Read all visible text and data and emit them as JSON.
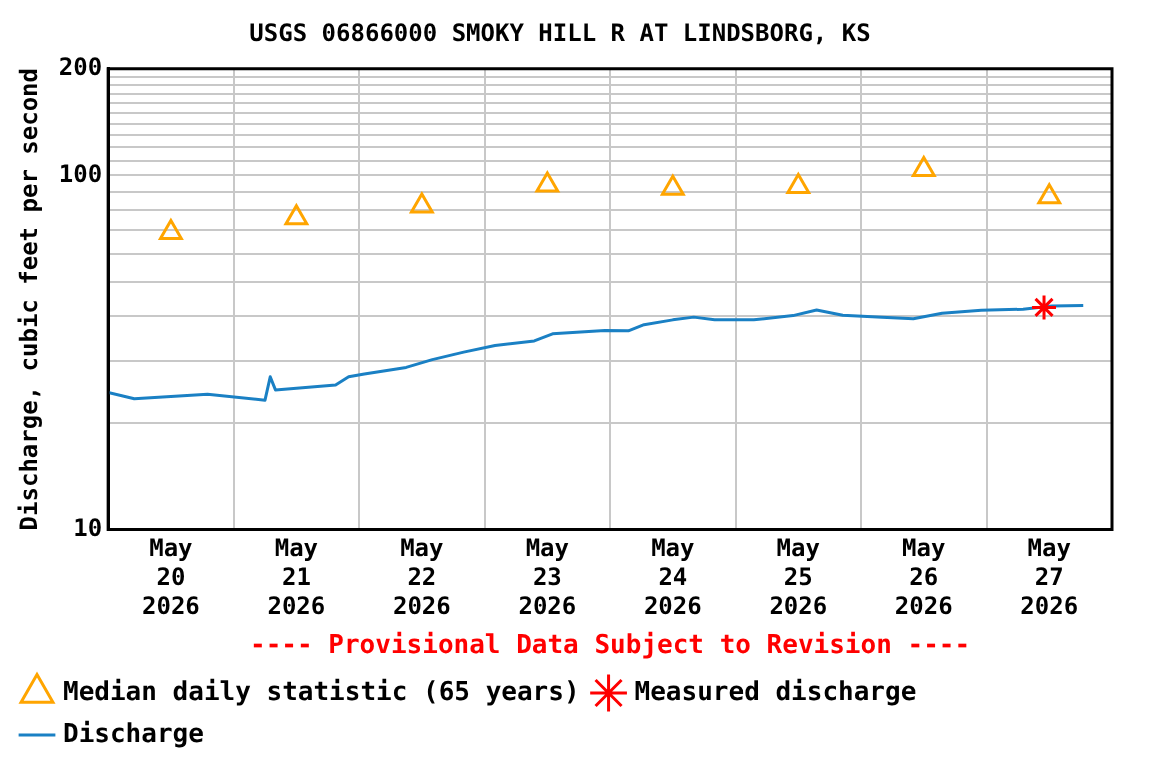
{
  "chart_data": {
    "type": "line",
    "title": "USGS 06866000 SMOKY HILL R AT LINDSBORG, KS",
    "ylabel": "Discharge, cubic feet per second",
    "annotations": [
      "---- Provisional Data Subject to Revision ----"
    ],
    "log": "y",
    "grid": true,
    "legend": "bottom",
    "xlim": [
      "2026-05-20T00:00",
      "2026-05-28T00:00"
    ],
    "xticks": [
      {
        "value": "2026-05-20T00:00",
        "label": null
      },
      {
        "value": "2026-05-20T12:00",
        "label": "May 20 2026"
      },
      {
        "value": "2026-05-21T00:00",
        "label": null
      },
      {
        "value": "2026-05-21T12:00",
        "label": "May 21 2026"
      },
      {
        "value": "2026-05-22T00:00",
        "label": null
      },
      {
        "value": "2026-05-22T12:00",
        "label": "May 22 2026"
      },
      {
        "value": "2026-05-23T00:00",
        "label": null
      },
      {
        "value": "2026-05-23T12:00",
        "label": "May 23 2026"
      },
      {
        "value": "2026-05-24T00:00",
        "label": null
      },
      {
        "value": "2026-05-24T12:00",
        "label": "May 24 2026"
      },
      {
        "value": "2026-05-25T00:00",
        "label": null
      },
      {
        "value": "2026-05-25T12:00",
        "label": "May 25 2026"
      },
      {
        "value": "2026-05-26T00:00",
        "label": null
      },
      {
        "value": "2026-05-26T12:00",
        "label": "May 26 2026"
      },
      {
        "value": "2026-05-27T00:00",
        "label": null
      },
      {
        "value": "2026-05-27T12:00",
        "label": "May 27 2026"
      },
      {
        "value": "2026-05-28T00:00",
        "label": null
      }
    ],
    "ylim": [
      10,
      200
    ],
    "yticks": [
      10,
      {
        "value": 20,
        "label": null
      },
      {
        "value": 30,
        "label": null
      },
      {
        "value": 40,
        "label": null
      },
      {
        "value": 50,
        "label": null
      },
      {
        "value": 60,
        "label": null
      },
      {
        "value": 70,
        "label": null
      },
      {
        "value": 80,
        "label": null
      },
      {
        "value": 90,
        "label": null
      },
      100,
      {
        "value": 110,
        "label": null
      },
      {
        "value": 120,
        "label": null
      },
      {
        "value": 130,
        "label": null
      },
      {
        "value": 140,
        "label": null
      },
      {
        "value": 150,
        "label": null
      },
      {
        "value": 160,
        "label": null
      },
      {
        "value": 170,
        "label": null
      },
      {
        "value": 180,
        "label": null
      },
      {
        "value": 190,
        "label": null
      },
      200
    ],
    "series": [
      {
        "name": "Median daily statistic (65 years)",
        "type": "scatter",
        "marker": "triangle",
        "color": "#ffa500",
        "x": [
          "2026-05-20T12:00",
          "2026-05-21T12:00",
          "2026-05-22T12:00",
          "2026-05-23T12:00",
          "2026-05-24T12:00",
          "2026-05-25T12:00",
          "2026-05-26T12:00",
          "2026-05-27T12:00"
        ],
        "values": [
          69,
          76,
          82,
          94,
          92,
          93,
          104,
          87
        ]
      },
      {
        "name": "Measured discharge",
        "type": "scatter",
        "marker": "cross",
        "color": "#ff0000",
        "x": [
          "2026-05-27T11:00"
        ],
        "values": [
          42.4
        ]
      },
      {
        "name": "Discharge",
        "marker": "none",
        "color": "#1a80c4",
        "x": [
          "2026-05-20T00:00",
          "2026-05-20T05:00",
          "2026-05-20T19:00",
          "2026-05-21T06:00",
          "2026-05-21T07:00",
          "2026-05-21T08:00",
          "2026-05-21T19:30",
          "2026-05-21T22:00",
          "2026-05-22T01:00",
          "2026-05-22T09:00",
          "2026-05-22T14:00",
          "2026-05-22T20:00",
          "2026-05-23T02:00",
          "2026-05-23T09:30",
          "2026-05-23T13:00",
          "2026-05-23T23:00",
          "2026-05-24T03:30",
          "2026-05-24T06:30",
          "2026-05-24T12:00",
          "2026-05-24T16:00",
          "2026-05-24T20:00",
          "2026-05-25T03:30",
          "2026-05-25T11:00",
          "2026-05-25T15:30",
          "2026-05-25T20:30",
          "2026-05-26T04:00",
          "2026-05-26T10:00",
          "2026-05-26T15:30",
          "2026-05-26T23:00",
          "2026-05-27T07:00",
          "2026-05-27T12:30",
          "2026-05-27T18:30"
        ],
        "values": [
          24.4,
          23.4,
          24.1,
          23.2,
          27.0,
          24.8,
          25.6,
          27.0,
          27.5,
          28.7,
          30.2,
          31.7,
          33.1,
          34.1,
          35.7,
          36.5,
          36.4,
          37.9,
          39.1,
          39.8,
          39.1,
          39.1,
          40.2,
          41.7,
          40.3,
          39.8,
          39.4,
          40.8,
          41.6,
          41.9,
          42.8,
          42.9
        ]
      }
    ]
  }
}
